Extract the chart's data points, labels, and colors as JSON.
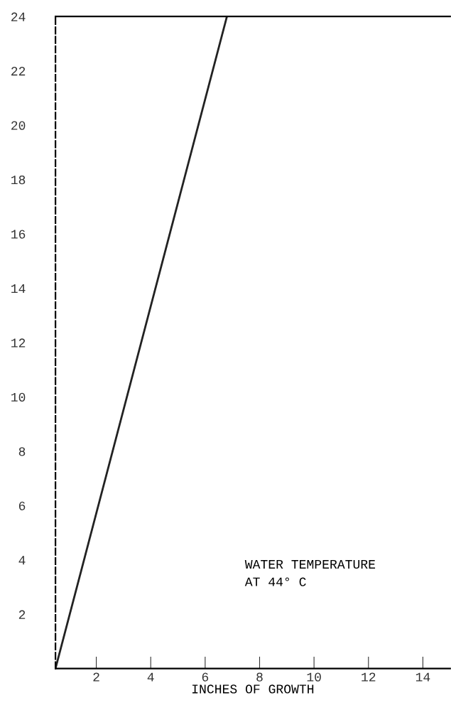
{
  "chart_data": {
    "type": "line",
    "xlabel": "INCHES OF GROWTH",
    "series": [
      {
        "color": "#222222",
        "x": [
          0.5,
          6.8
        ],
        "values": [
          0,
          24
        ]
      }
    ],
    "xlim": [
      0.5,
      15
    ],
    "ylim": [
      0,
      24
    ],
    "xticks": [
      2,
      4,
      6,
      8,
      10,
      12,
      14
    ],
    "yticks": [
      2,
      4,
      6,
      8,
      10,
      12,
      14,
      16,
      18,
      20,
      22,
      24
    ],
    "annotations": [
      "WATER TEMPERATURE\nAT 44° C"
    ],
    "grid": false,
    "legend": false,
    "marker": "none",
    "line_style": "solid"
  }
}
